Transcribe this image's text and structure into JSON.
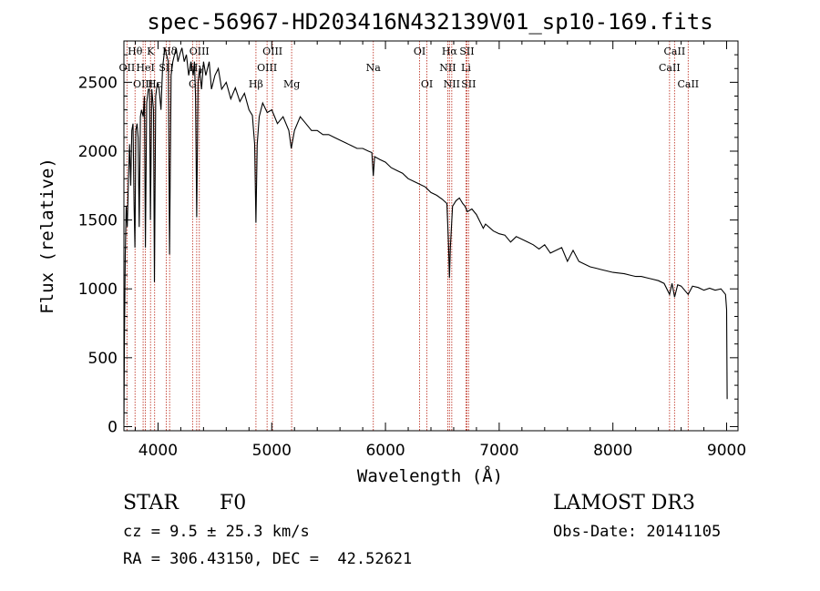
{
  "chart_data": {
    "type": "line",
    "title": "spec-56967-HD203416N432139V01_sp10-169.fits",
    "xlabel": "Wavelength (Å)",
    "ylabel": "Flux (relative)",
    "xlim": [
      3700,
      9100
    ],
    "ylim": [
      -30,
      2800
    ],
    "x_ticks": [
      4000,
      5000,
      6000,
      7000,
      8000,
      9000
    ],
    "y_ticks": [
      0,
      500,
      1000,
      1500,
      2000,
      2500
    ],
    "grid": false,
    "series": [
      {
        "name": "flux",
        "points": [
          [
            3700,
            20
          ],
          [
            3705,
            650
          ],
          [
            3712,
            1250
          ],
          [
            3720,
            1600
          ],
          [
            3730,
            1450
          ],
          [
            3740,
            1800
          ],
          [
            3750,
            2050
          ],
          [
            3760,
            1750
          ],
          [
            3770,
            2150
          ],
          [
            3780,
            2200
          ],
          [
            3790,
            1600
          ],
          [
            3797,
            1300
          ],
          [
            3805,
            2150
          ],
          [
            3815,
            2200
          ],
          [
            3825,
            2100
          ],
          [
            3835,
            1450
          ],
          [
            3845,
            2250
          ],
          [
            3855,
            2300
          ],
          [
            3870,
            2250
          ],
          [
            3880,
            2400
          ],
          [
            3889,
            1300
          ],
          [
            3900,
            2350
          ],
          [
            3915,
            2450
          ],
          [
            3925,
            2450
          ],
          [
            3933,
            1500
          ],
          [
            3945,
            2450
          ],
          [
            3960,
            2300
          ],
          [
            3968,
            1050
          ],
          [
            3980,
            2400
          ],
          [
            3995,
            2500
          ],
          [
            4010,
            2450
          ],
          [
            4026,
            2300
          ],
          [
            4040,
            2600
          ],
          [
            4060,
            2750
          ],
          [
            4075,
            2700
          ],
          [
            4090,
            2650
          ],
          [
            4101,
            1250
          ],
          [
            4115,
            2550
          ],
          [
            4130,
            2650
          ],
          [
            4145,
            2700
          ],
          [
            4160,
            2750
          ],
          [
            4175,
            2650
          ],
          [
            4190,
            2700
          ],
          [
            4210,
            2750
          ],
          [
            4230,
            2650
          ],
          [
            4250,
            2700
          ],
          [
            4270,
            2550
          ],
          [
            4290,
            2650
          ],
          [
            4310,
            2550
          ],
          [
            4320,
            2650
          ],
          [
            4330,
            2400
          ],
          [
            4340,
            1520
          ],
          [
            4352,
            2500
          ],
          [
            4365,
            2600
          ],
          [
            4383,
            2450
          ],
          [
            4400,
            2650
          ],
          [
            4420,
            2550
          ],
          [
            4450,
            2650
          ],
          [
            4470,
            2450
          ],
          [
            4500,
            2550
          ],
          [
            4530,
            2600
          ],
          [
            4560,
            2450
          ],
          [
            4600,
            2500
          ],
          [
            4640,
            2380
          ],
          [
            4680,
            2460
          ],
          [
            4720,
            2360
          ],
          [
            4760,
            2420
          ],
          [
            4800,
            2300
          ],
          [
            4830,
            2260
          ],
          [
            4850,
            2050
          ],
          [
            4861,
            1480
          ],
          [
            4872,
            2050
          ],
          [
            4890,
            2250
          ],
          [
            4920,
            2350
          ],
          [
            4960,
            2280
          ],
          [
            5000,
            2300
          ],
          [
            5050,
            2200
          ],
          [
            5100,
            2250
          ],
          [
            5150,
            2150
          ],
          [
            5172,
            2020
          ],
          [
            5200,
            2150
          ],
          [
            5250,
            2250
          ],
          [
            5300,
            2200
          ],
          [
            5350,
            2150
          ],
          [
            5400,
            2150
          ],
          [
            5450,
            2120
          ],
          [
            5500,
            2120
          ],
          [
            5550,
            2100
          ],
          [
            5600,
            2080
          ],
          [
            5650,
            2060
          ],
          [
            5700,
            2040
          ],
          [
            5750,
            2020
          ],
          [
            5800,
            2020
          ],
          [
            5850,
            2000
          ],
          [
            5880,
            1990
          ],
          [
            5893,
            1820
          ],
          [
            5905,
            1960
          ],
          [
            5950,
            1940
          ],
          [
            6000,
            1920
          ],
          [
            6050,
            1880
          ],
          [
            6100,
            1860
          ],
          [
            6150,
            1840
          ],
          [
            6200,
            1800
          ],
          [
            6250,
            1780
          ],
          [
            6300,
            1760
          ],
          [
            6350,
            1740
          ],
          [
            6400,
            1700
          ],
          [
            6450,
            1680
          ],
          [
            6500,
            1650
          ],
          [
            6540,
            1620
          ],
          [
            6555,
            1320
          ],
          [
            6563,
            1080
          ],
          [
            6571,
            1300
          ],
          [
            6590,
            1600
          ],
          [
            6620,
            1640
          ],
          [
            6650,
            1660
          ],
          [
            6680,
            1620
          ],
          [
            6700,
            1600
          ],
          [
            6720,
            1560
          ],
          [
            6760,
            1580
          ],
          [
            6800,
            1540
          ],
          [
            6860,
            1440
          ],
          [
            6880,
            1470
          ],
          [
            6950,
            1420
          ],
          [
            7000,
            1400
          ],
          [
            7050,
            1390
          ],
          [
            7100,
            1340
          ],
          [
            7150,
            1380
          ],
          [
            7200,
            1360
          ],
          [
            7250,
            1340
          ],
          [
            7300,
            1320
          ],
          [
            7350,
            1290
          ],
          [
            7400,
            1320
          ],
          [
            7450,
            1260
          ],
          [
            7500,
            1280
          ],
          [
            7550,
            1300
          ],
          [
            7600,
            1200
          ],
          [
            7650,
            1280
          ],
          [
            7700,
            1200
          ],
          [
            7750,
            1180
          ],
          [
            7800,
            1160
          ],
          [
            7850,
            1150
          ],
          [
            7900,
            1140
          ],
          [
            7950,
            1130
          ],
          [
            8000,
            1120
          ],
          [
            8050,
            1115
          ],
          [
            8100,
            1110
          ],
          [
            8150,
            1100
          ],
          [
            8200,
            1090
          ],
          [
            8250,
            1090
          ],
          [
            8300,
            1080
          ],
          [
            8350,
            1070
          ],
          [
            8400,
            1060
          ],
          [
            8450,
            1040
          ],
          [
            8498,
            960
          ],
          [
            8520,
            1040
          ],
          [
            8542,
            940
          ],
          [
            8570,
            1030
          ],
          [
            8600,
            1020
          ],
          [
            8662,
            960
          ],
          [
            8700,
            1020
          ],
          [
            8750,
            1010
          ],
          [
            8800,
            990
          ],
          [
            8850,
            1005
          ],
          [
            8900,
            990
          ],
          [
            8950,
            1000
          ],
          [
            8990,
            960
          ],
          [
            9000,
            850
          ],
          [
            9005,
            200
          ]
        ]
      }
    ],
    "lines": [
      {
        "label": "Hθ",
        "wavelength": 3798,
        "row": 0
      },
      {
        "label": "K",
        "wavelength": 3934,
        "row": 0
      },
      {
        "label": "Hδ",
        "wavelength": 4102,
        "row": 0
      },
      {
        "label": "OIII",
        "wavelength": 4363,
        "row": 0
      },
      {
        "label": "OIII",
        "wavelength": 5007,
        "row": 0
      },
      {
        "label": "OI",
        "wavelength": 6300,
        "row": 0
      },
      {
        "label": "Hα",
        "wavelength": 6563,
        "row": 0
      },
      {
        "label": "SII",
        "wavelength": 6716,
        "row": 0
      },
      {
        "label": "CaII",
        "wavelength": 8542,
        "row": 0
      },
      {
        "label": "OII",
        "wavelength": 3727,
        "row": 1
      },
      {
        "label": "HeI",
        "wavelength": 3889,
        "row": 1
      },
      {
        "label": "SII",
        "wavelength": 4072,
        "row": 1
      },
      {
        "label": "Hγ",
        "wavelength": 4340,
        "row": 1
      },
      {
        "label": "OIII",
        "wavelength": 4959,
        "row": 1
      },
      {
        "label": "Na",
        "wavelength": 5893,
        "row": 1
      },
      {
        "label": "NII",
        "wavelength": 6548,
        "row": 1
      },
      {
        "label": "Li",
        "wavelength": 6708,
        "row": 1
      },
      {
        "label": "CaII",
        "wavelength": 8498,
        "row": 1
      },
      {
        "label": "OIII",
        "wavelength": 3869,
        "row": 2
      },
      {
        "label": "Hε",
        "wavelength": 3970,
        "row": 2
      },
      {
        "label": "G",
        "wavelength": 4304,
        "row": 2
      },
      {
        "label": "Hβ",
        "wavelength": 4861,
        "row": 2
      },
      {
        "label": "Mg",
        "wavelength": 5175,
        "row": 2
      },
      {
        "label": "OI",
        "wavelength": 6364,
        "row": 2
      },
      {
        "label": "NII",
        "wavelength": 6583,
        "row": 2
      },
      {
        "label": "SII",
        "wavelength": 6731,
        "row": 2
      },
      {
        "label": "CaII",
        "wavelength": 8662,
        "row": 2
      }
    ]
  },
  "info": {
    "object_class": "STAR",
    "subclass": "F0",
    "survey": "LAMOST DR3",
    "redshift": "cz = 9.5 ± 25.3 km/s",
    "obs_date": "Obs-Date: 20141105",
    "coords": "RA = 306.43150, DEC =  42.52621"
  }
}
